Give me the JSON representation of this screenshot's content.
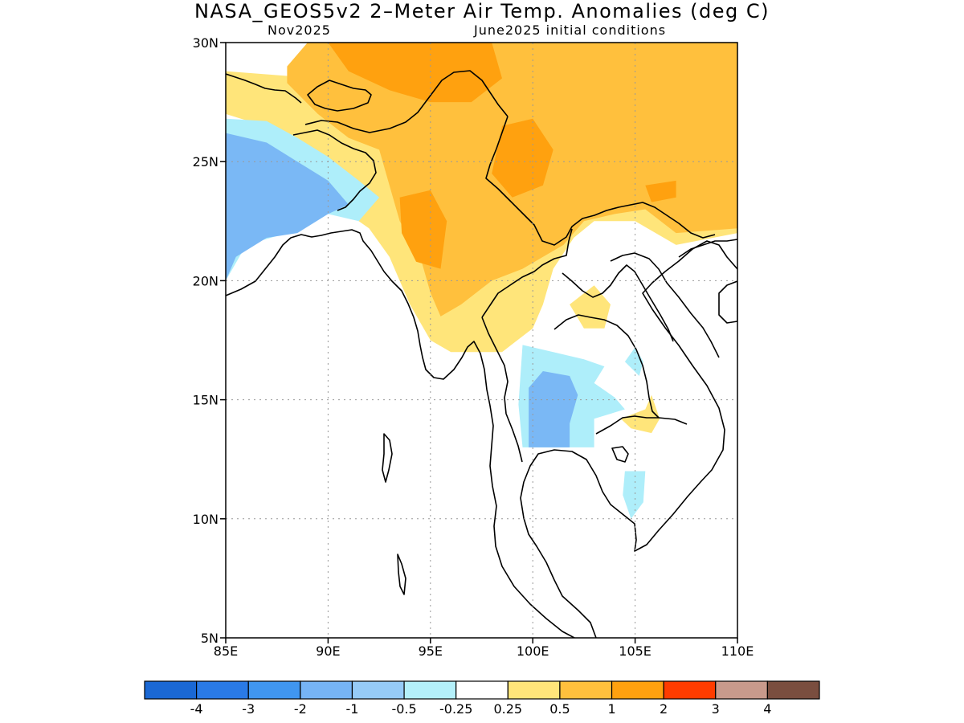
{
  "title": "NASA_GEOS5v2 2–Meter Air Temp. Anomalies (deg C)",
  "subtitle_left": "Nov2025",
  "subtitle_right": "June2025 initial conditions",
  "map": {
    "lon_range": [
      85,
      110
    ],
    "lat_range": [
      5,
      30
    ],
    "lon_ticks": [
      {
        "value": 85,
        "label": "85E"
      },
      {
        "value": 90,
        "label": "90E"
      },
      {
        "value": 95,
        "label": "95E"
      },
      {
        "value": 100,
        "label": "100E"
      },
      {
        "value": 105,
        "label": "105E"
      },
      {
        "value": 110,
        "label": "110E"
      }
    ],
    "lat_ticks": [
      {
        "value": 5,
        "label": "5N"
      },
      {
        "value": 10,
        "label": "10N"
      },
      {
        "value": 15,
        "label": "15N"
      },
      {
        "value": 20,
        "label": "20N"
      },
      {
        "value": 25,
        "label": "25N"
      },
      {
        "value": 30,
        "label": "30N"
      }
    ],
    "gridlines": "dotted",
    "anomaly_regions": [
      {
        "name": "warm-north-yellow",
        "level": "0.25 to 0.5",
        "color": "#ffe57a",
        "points": [
          [
            85,
            28.8
          ],
          [
            88,
            28.6
          ],
          [
            90,
            28.4
          ],
          [
            93,
            28.2
          ],
          [
            95,
            28.5
          ],
          [
            100,
            28.2
          ],
          [
            105,
            28.8
          ],
          [
            110,
            29.5
          ],
          [
            110,
            22
          ],
          [
            107,
            21.5
          ],
          [
            105,
            22.5
          ],
          [
            103,
            22.5
          ],
          [
            102,
            21.8
          ],
          [
            101,
            20.5
          ],
          [
            100.5,
            19
          ],
          [
            100,
            18
          ],
          [
            98.5,
            17
          ],
          [
            96,
            17
          ],
          [
            95,
            17.5
          ],
          [
            94,
            19
          ],
          [
            93,
            21
          ],
          [
            92,
            22.2
          ],
          [
            91,
            22.8
          ],
          [
            89.5,
            24
          ],
          [
            88,
            25.5
          ],
          [
            86.5,
            26.6
          ],
          [
            85,
            27
          ]
        ]
      },
      {
        "name": "warm-north-orange",
        "level": "0.5 to 1",
        "color": "#ffc03d",
        "points": [
          [
            89,
            30
          ],
          [
            110,
            30
          ],
          [
            110,
            22.2
          ],
          [
            107,
            22
          ],
          [
            105.5,
            23
          ],
          [
            104,
            22.8
          ],
          [
            102.5,
            22.5
          ],
          [
            101.5,
            21.5
          ],
          [
            100.5,
            21
          ],
          [
            99.5,
            20.5
          ],
          [
            98,
            20
          ],
          [
            96.5,
            19
          ],
          [
            95.5,
            18.5
          ],
          [
            95,
            19.5
          ],
          [
            94.5,
            21
          ],
          [
            93.5,
            22.5
          ],
          [
            93,
            24
          ],
          [
            92.5,
            25.5
          ],
          [
            91,
            26
          ],
          [
            89.5,
            27
          ],
          [
            88,
            28.3
          ],
          [
            88,
            29
          ]
        ]
      },
      {
        "name": "warm-orange-core-1",
        "level": "1 to 2",
        "color": "#ffa10f",
        "points": [
          [
            90,
            30
          ],
          [
            98,
            30
          ],
          [
            98.5,
            28.5
          ],
          [
            97,
            27.5
          ],
          [
            95,
            27.5
          ],
          [
            93,
            28
          ],
          [
            91,
            28.8
          ]
        ]
      },
      {
        "name": "warm-orange-core-2",
        "level": "1 to 2",
        "color": "#ffa10f",
        "points": [
          [
            98.5,
            26.5
          ],
          [
            100,
            26.8
          ],
          [
            101,
            25.5
          ],
          [
            100.5,
            24
          ],
          [
            99,
            23.5
          ],
          [
            98,
            24.5
          ]
        ]
      },
      {
        "name": "warm-orange-core-3",
        "level": "1 to 2",
        "color": "#ffa10f",
        "points": [
          [
            93.5,
            23.5
          ],
          [
            95,
            23.8
          ],
          [
            95.8,
            22.5
          ],
          [
            95.5,
            20.5
          ],
          [
            94.3,
            20.8
          ],
          [
            93.6,
            22
          ]
        ]
      },
      {
        "name": "warm-orange-core-4",
        "level": "1 to 2",
        "color": "#ffa10f",
        "points": [
          [
            105.5,
            24
          ],
          [
            107,
            24.2
          ],
          [
            107,
            23.5
          ],
          [
            105.8,
            23.3
          ]
        ]
      },
      {
        "name": "cool-bay-light",
        "level": "-0.5 to -0.25",
        "color": "#aeeefa",
        "points": [
          [
            85,
            26.8
          ],
          [
            87,
            26.7
          ],
          [
            88.5,
            26
          ],
          [
            90,
            25.2
          ],
          [
            91.5,
            24.2
          ],
          [
            92.5,
            23.5
          ],
          [
            91.5,
            22.5
          ],
          [
            90,
            22.8
          ],
          [
            88,
            22
          ],
          [
            86,
            21.5
          ],
          [
            85,
            20
          ]
        ]
      },
      {
        "name": "cool-bay-blue",
        "level": "-1 to -0.5",
        "color": "#7ab8f5",
        "points": [
          [
            85,
            26.2
          ],
          [
            87,
            25.8
          ],
          [
            88.5,
            25
          ],
          [
            90,
            24.2
          ],
          [
            91,
            23.2
          ],
          [
            90,
            22.8
          ],
          [
            88.5,
            22
          ],
          [
            87,
            21.8
          ],
          [
            85.5,
            21
          ],
          [
            85,
            20
          ]
        ]
      },
      {
        "name": "cool-central-light",
        "level": "-0.5 to -0.25",
        "color": "#aeeefa",
        "points": [
          [
            99.5,
            17.3
          ],
          [
            101,
            17
          ],
          [
            102.5,
            16.7
          ],
          [
            103.5,
            16.4
          ],
          [
            103,
            15.7
          ],
          [
            104,
            15.1
          ],
          [
            104.5,
            14.6
          ],
          [
            103,
            14.2
          ],
          [
            103,
            13
          ],
          [
            99.5,
            13
          ],
          [
            99.3,
            14.8
          ]
        ]
      },
      {
        "name": "cool-central-blue",
        "level": "-1 to -0.5",
        "color": "#7ab8f5",
        "points": [
          [
            99.8,
            15.5
          ],
          [
            100.5,
            16.2
          ],
          [
            101.8,
            16
          ],
          [
            102.2,
            15.2
          ],
          [
            101.8,
            14
          ],
          [
            101.8,
            13
          ],
          [
            99.8,
            13
          ]
        ]
      },
      {
        "name": "cool-east-light",
        "level": "-0.5 to -0.25",
        "color": "#aeeefa",
        "points": [
          [
            104.5,
            16.6
          ],
          [
            105,
            17.2
          ],
          [
            105.4,
            16.6
          ],
          [
            105.2,
            16
          ]
        ]
      },
      {
        "name": "cool-south-light",
        "level": "-0.5 to -0.25",
        "color": "#aeeefa",
        "points": [
          [
            104.5,
            12
          ],
          [
            105.5,
            12
          ],
          [
            105.4,
            10.7
          ],
          [
            104.8,
            10
          ],
          [
            104.4,
            11
          ]
        ]
      },
      {
        "name": "warm-cambodia-yellow",
        "level": "0.25 to 0.5",
        "color": "#ffe57a",
        "points": [
          [
            104.3,
            14.2
          ],
          [
            105.5,
            14.6
          ],
          [
            105.8,
            15.2
          ],
          [
            106.2,
            14.2
          ],
          [
            105.8,
            13.6
          ],
          [
            104.8,
            13.8
          ]
        ]
      },
      {
        "name": "warm-laos-yellow",
        "level": "0.25 to 0.5",
        "color": "#ffe57a",
        "points": [
          [
            101.8,
            19
          ],
          [
            103,
            19.8
          ],
          [
            103.8,
            19
          ],
          [
            103.5,
            18
          ],
          [
            102.5,
            18
          ]
        ]
      }
    ]
  },
  "colorbar": {
    "colors": [
      "#1a68d4",
      "#2a7ae6",
      "#4096f0",
      "#76b4f5",
      "#96cbf7",
      "#b4f0fa",
      "#ffffff",
      "#ffe57a",
      "#ffc03d",
      "#ffa10f",
      "#ff3c00",
      "#c89a8c",
      "#7a4e3f"
    ],
    "labels": [
      "-4",
      "-3",
      "-2",
      "-1",
      "-0.5",
      "-0.25",
      "0.25",
      "0.5",
      "1",
      "2",
      "3",
      "4"
    ]
  }
}
